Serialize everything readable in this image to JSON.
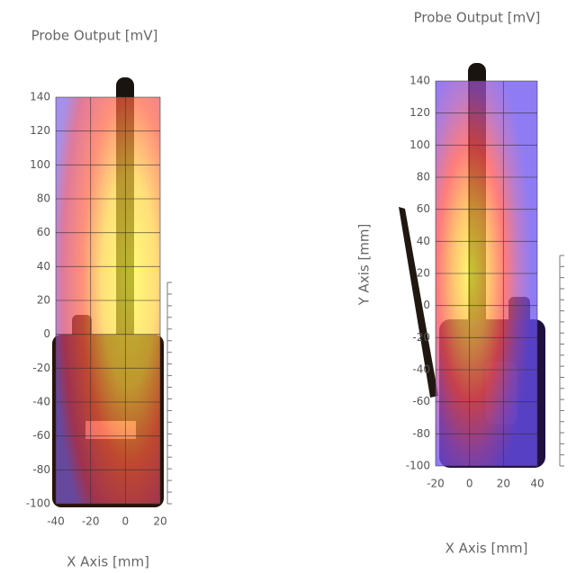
{
  "chart_data": [
    {
      "type": "heatmap",
      "title": "Probe Output [mV]",
      "x_label": "X Axis [mm]",
      "xlim": [
        -40,
        20
      ],
      "xticks": [
        -40,
        -20,
        0,
        20
      ],
      "ylim": [
        -100,
        140
      ],
      "yticks": [
        -100,
        -80,
        -60,
        -40,
        -20,
        0,
        20,
        40,
        60,
        80,
        100,
        120,
        140
      ],
      "grid": true
    },
    {
      "type": "heatmap",
      "title": "Probe Output [mV]",
      "x_label": "X Axis [mm]",
      "y_label": "Y Axis [mm]",
      "xlim": [
        -20,
        40
      ],
      "xticks": [
        -20,
        0,
        20,
        40
      ],
      "ylim": [
        -100,
        140
      ],
      "yticks": [
        -100,
        -80,
        -60,
        -40,
        -20,
        0,
        20,
        40,
        60,
        80,
        100,
        120,
        140
      ],
      "grid": true
    }
  ]
}
